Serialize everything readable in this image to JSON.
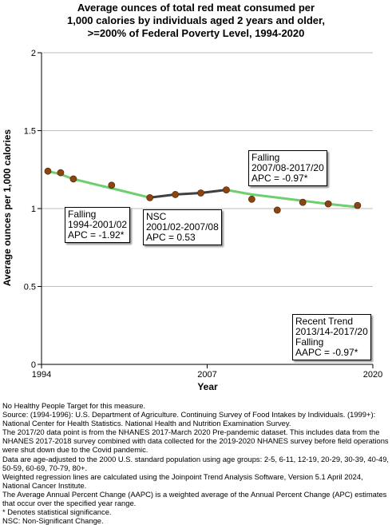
{
  "title": {
    "lines": [
      "Average ounces of total red meat consumed per",
      "1,000 calories by individuals aged 2 years and older,",
      ">=200% of Federal Poverty Level,  1994-2020"
    ]
  },
  "chart_data": {
    "type": "scatter",
    "xlabel": "Year",
    "ylabel": "Average ounces per 1,000 calories",
    "xlim": [
      1994,
      2020
    ],
    "ylim": [
      0,
      2
    ],
    "x_ticks": [
      "1994",
      "2007",
      "2020"
    ],
    "y_ticks": [
      "0",
      "0.5",
      "1",
      "1.5",
      "2"
    ],
    "grid": true,
    "points": [
      {
        "x": 1994.5,
        "y": 1.24
      },
      {
        "x": 1995.5,
        "y": 1.23
      },
      {
        "x": 1996.5,
        "y": 1.19
      },
      {
        "x": 1999.5,
        "y": 1.15
      },
      {
        "x": 2002.5,
        "y": 1.07
      },
      {
        "x": 2004.5,
        "y": 1.09
      },
      {
        "x": 2006.5,
        "y": 1.1
      },
      {
        "x": 2008.5,
        "y": 1.12
      },
      {
        "x": 2010.5,
        "y": 1.06
      },
      {
        "x": 2012.5,
        "y": 0.99
      },
      {
        "x": 2014.5,
        "y": 1.04
      },
      {
        "x": 2016.5,
        "y": 1.03
      },
      {
        "x": 2018.8,
        "y": 1.02
      }
    ],
    "trend_segments": [
      {
        "label": "Falling",
        "period": "1994-2001/02",
        "stat": "APC = -1.92*",
        "color": "#6dcf6d",
        "points": [
          [
            1994.5,
            1.24
          ],
          [
            1995.5,
            1.22
          ],
          [
            1996.5,
            1.19
          ],
          [
            1998.5,
            1.15
          ],
          [
            2000.5,
            1.11
          ],
          [
            2002.5,
            1.07
          ]
        ]
      },
      {
        "label": "NSC",
        "period": "2001/02-2007/08",
        "stat": "APC =  0.53",
        "color": "#404040",
        "points": [
          [
            2002.5,
            1.07
          ],
          [
            2004.5,
            1.09
          ],
          [
            2006.5,
            1.1
          ],
          [
            2008.5,
            1.12
          ]
        ]
      },
      {
        "label": "Falling",
        "period": "2007/08-2017/20",
        "stat": "APC = -0.97*",
        "color": "#6dcf6d",
        "points": [
          [
            2008.5,
            1.12
          ],
          [
            2010.5,
            1.09
          ],
          [
            2012.5,
            1.07
          ],
          [
            2014.5,
            1.05
          ],
          [
            2016.5,
            1.03
          ],
          [
            2018.8,
            1.01
          ]
        ]
      }
    ],
    "recent_trend": {
      "title": "Recent Trend",
      "period": "2013/14-2017/20",
      "direction": "Falling",
      "stat": "AAPC = -0.97*"
    }
  },
  "footnotes": [
    "No Healthy People Target for this measure.",
    "Source: (1994-1996): U.S. Department of Agriculture. Continuing Survey of Food Intakes by Individuals. (1999+): National Center for Health Statistics. National Health and Nutrition Examination Survey.",
    "The 2017/20 data point is from the NHANES 2017-March 2020 Pre-pandemic dataset. This includes data from the NHANES 2017-2018 survey combined with data collected for the 2019-2020 NHANES survey before field operations were shut down due to the Covid pandemic.",
    "Data are age-adjusted to the 2000 U.S. standard population using age groups: 2-5, 6-11, 12-19, 20-29, 30-39, 40-49, 50-59, 60-69, 70-79, 80+.",
    "Weighted regression lines are calculated using the Joinpoint Trend Analysis Software, Version 5.1 April 2024, National Cancer Institute.",
    "The Average Annual Percent Change (AAPC) is a weighted average of the Annual Percent Change (APC) estimates that occur over the specified year range.",
    "* Denotes statistical significance.",
    "NSC: Non-Significant Change."
  ]
}
